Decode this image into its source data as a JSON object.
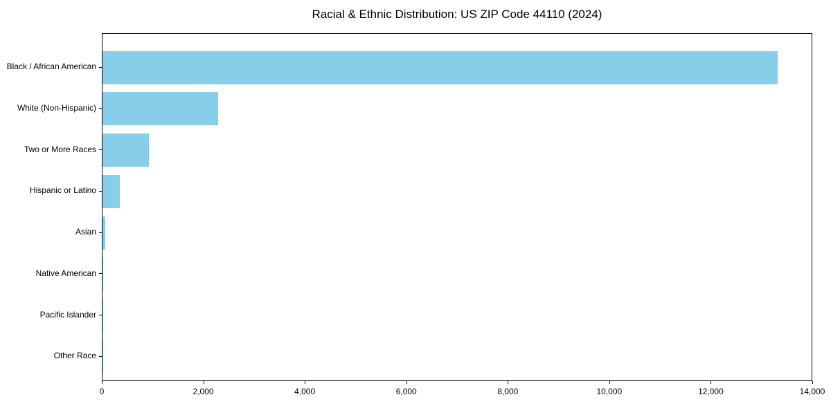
{
  "title": "Racial & Ethnic Distribution: US ZIP Code 44110 (2024)",
  "chart_data": {
    "type": "bar",
    "orientation": "horizontal",
    "title": "Racial & Ethnic Distribution: US ZIP Code 44110 (2024)",
    "xlabel": "",
    "ylabel": "",
    "categories": [
      "Black / African American",
      "White (Non-Hispanic)",
      "Two or More Races",
      "Hispanic or Latino",
      "Asian",
      "Native American",
      "Pacific Islander",
      "Other Race"
    ],
    "values": [
      13330,
      2280,
      915,
      340,
      60,
      15,
      5,
      2
    ],
    "xlim": [
      0,
      14000
    ],
    "x_ticks": [
      0,
      2000,
      4000,
      6000,
      8000,
      10000,
      12000,
      14000
    ],
    "x_tick_labels": [
      "0",
      "2,000",
      "4,000",
      "6,000",
      "8,000",
      "10,000",
      "12,000",
      "14,000"
    ],
    "bar_color": "#87CEEB",
    "axis_color": "#000000",
    "text_color": "#000000",
    "background_color": "#ffffff",
    "grid": false,
    "legend_position": "none"
  }
}
